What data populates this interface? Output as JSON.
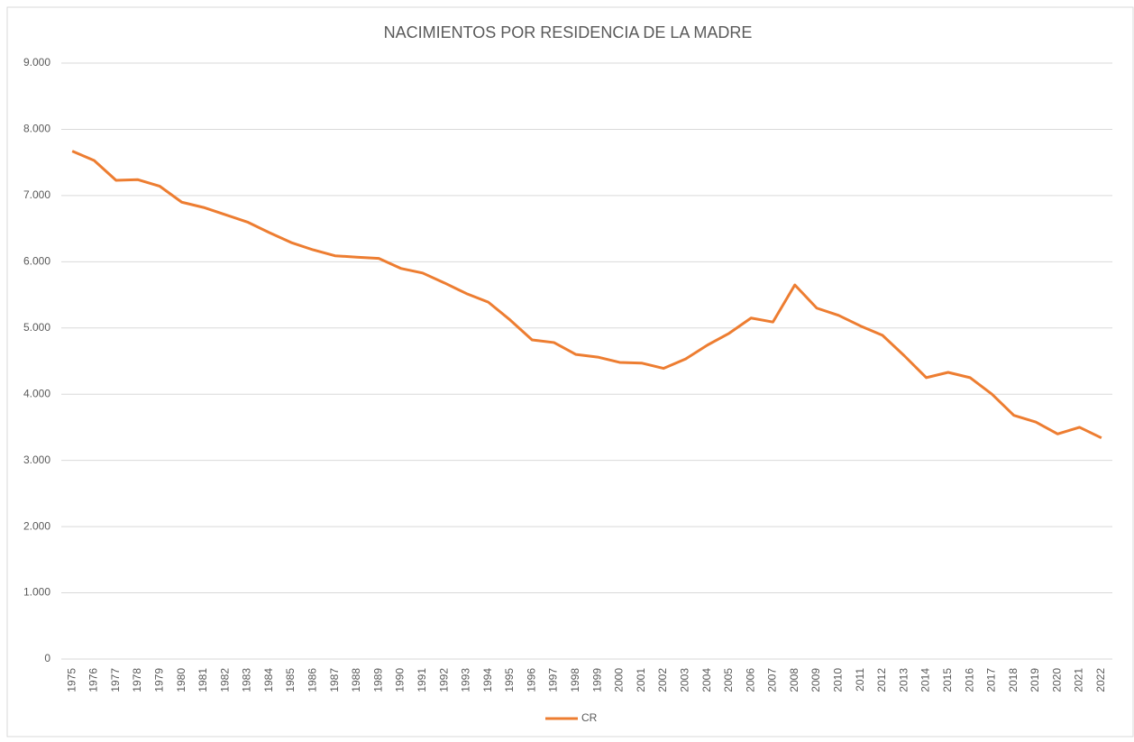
{
  "chart_data": {
    "type": "line",
    "title": "NACIMIENTOS POR RESIDENCIA DE LA MADRE",
    "categories": [
      "1975",
      "1976",
      "1977",
      "1978",
      "1979",
      "1980",
      "1981",
      "1982",
      "1983",
      "1984",
      "1985",
      "1986",
      "1987",
      "1988",
      "1989",
      "1990",
      "1991",
      "1992",
      "1993",
      "1994",
      "1995",
      "1996",
      "1997",
      "1998",
      "1999",
      "2000",
      "2001",
      "2002",
      "2003",
      "2004",
      "2005",
      "2006",
      "2007",
      "2008",
      "2009",
      "2010",
      "2011",
      "2012",
      "2013",
      "2014",
      "2015",
      "2016",
      "2017",
      "2018",
      "2019",
      "2020",
      "2021",
      "2022"
    ],
    "series": [
      {
        "name": "CR",
        "color": "#ed7d31",
        "values": [
          7670,
          7530,
          7230,
          7240,
          7140,
          6900,
          6820,
          6710,
          6600,
          6440,
          6290,
          6180,
          6090,
          6070,
          6050,
          5900,
          5830,
          5680,
          5520,
          5390,
          5120,
          4820,
          4780,
          4600,
          4560,
          4480,
          4470,
          4390,
          4530,
          4740,
          4920,
          5150,
          5090,
          5650,
          5300,
          5190,
          5030,
          4890,
          4580,
          4250,
          4330,
          4250,
          4000,
          3680,
          3580,
          3400,
          3500,
          3340
        ]
      }
    ],
    "ylim": [
      0,
      9000
    ],
    "yticks": [
      0,
      {
        "value": 1000,
        "label": "1.000"
      },
      {
        "value": 2000,
        "label": "2.000"
      },
      {
        "value": 3000,
        "label": "3.000"
      },
      {
        "value": 4000,
        "label": "4.000"
      },
      {
        "value": 5000,
        "label": "5.000"
      },
      {
        "value": 6000,
        "label": "6.000"
      },
      {
        "value": 7000,
        "label": "7.000"
      },
      {
        "value": 8000,
        "label": "8.000"
      },
      {
        "value": 9000,
        "label": "9.000"
      }
    ],
    "grid": true,
    "legend": "bottom"
  }
}
